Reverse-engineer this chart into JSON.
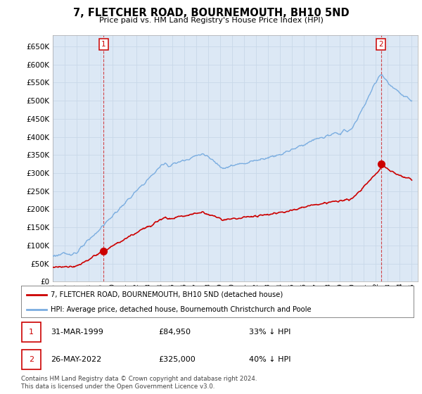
{
  "title": "7, FLETCHER ROAD, BOURNEMOUTH, BH10 5ND",
  "subtitle": "Price paid vs. HM Land Registry's House Price Index (HPI)",
  "ylim": [
    0,
    680000
  ],
  "yticks": [
    0,
    50000,
    100000,
    150000,
    200000,
    250000,
    300000,
    350000,
    400000,
    450000,
    500000,
    550000,
    600000,
    650000
  ],
  "sale1": {
    "date_num": 1999.25,
    "price": 84950,
    "label": "1",
    "text": "31-MAR-1999",
    "price_str": "£84,950",
    "hpi_str": "33% ↓ HPI"
  },
  "sale2": {
    "date_num": 2022.42,
    "price": 325000,
    "label": "2",
    "text": "26-MAY-2022",
    "price_str": "£325,000",
    "hpi_str": "40% ↓ HPI"
  },
  "legend_label_red": "7, FLETCHER ROAD, BOURNEMOUTH, BH10 5ND (detached house)",
  "legend_label_blue": "HPI: Average price, detached house, Bournemouth Christchurch and Poole",
  "footnote": "Contains HM Land Registry data © Crown copyright and database right 2024.\nThis data is licensed under the Open Government Licence v3.0.",
  "line_color_red": "#cc0000",
  "line_color_blue": "#7aade0",
  "grid_color": "#c8d8e8",
  "bg_color": "#ffffff",
  "plot_bg": "#dce8f5",
  "xlim_left": 1995.0,
  "xlim_right": 2025.5
}
